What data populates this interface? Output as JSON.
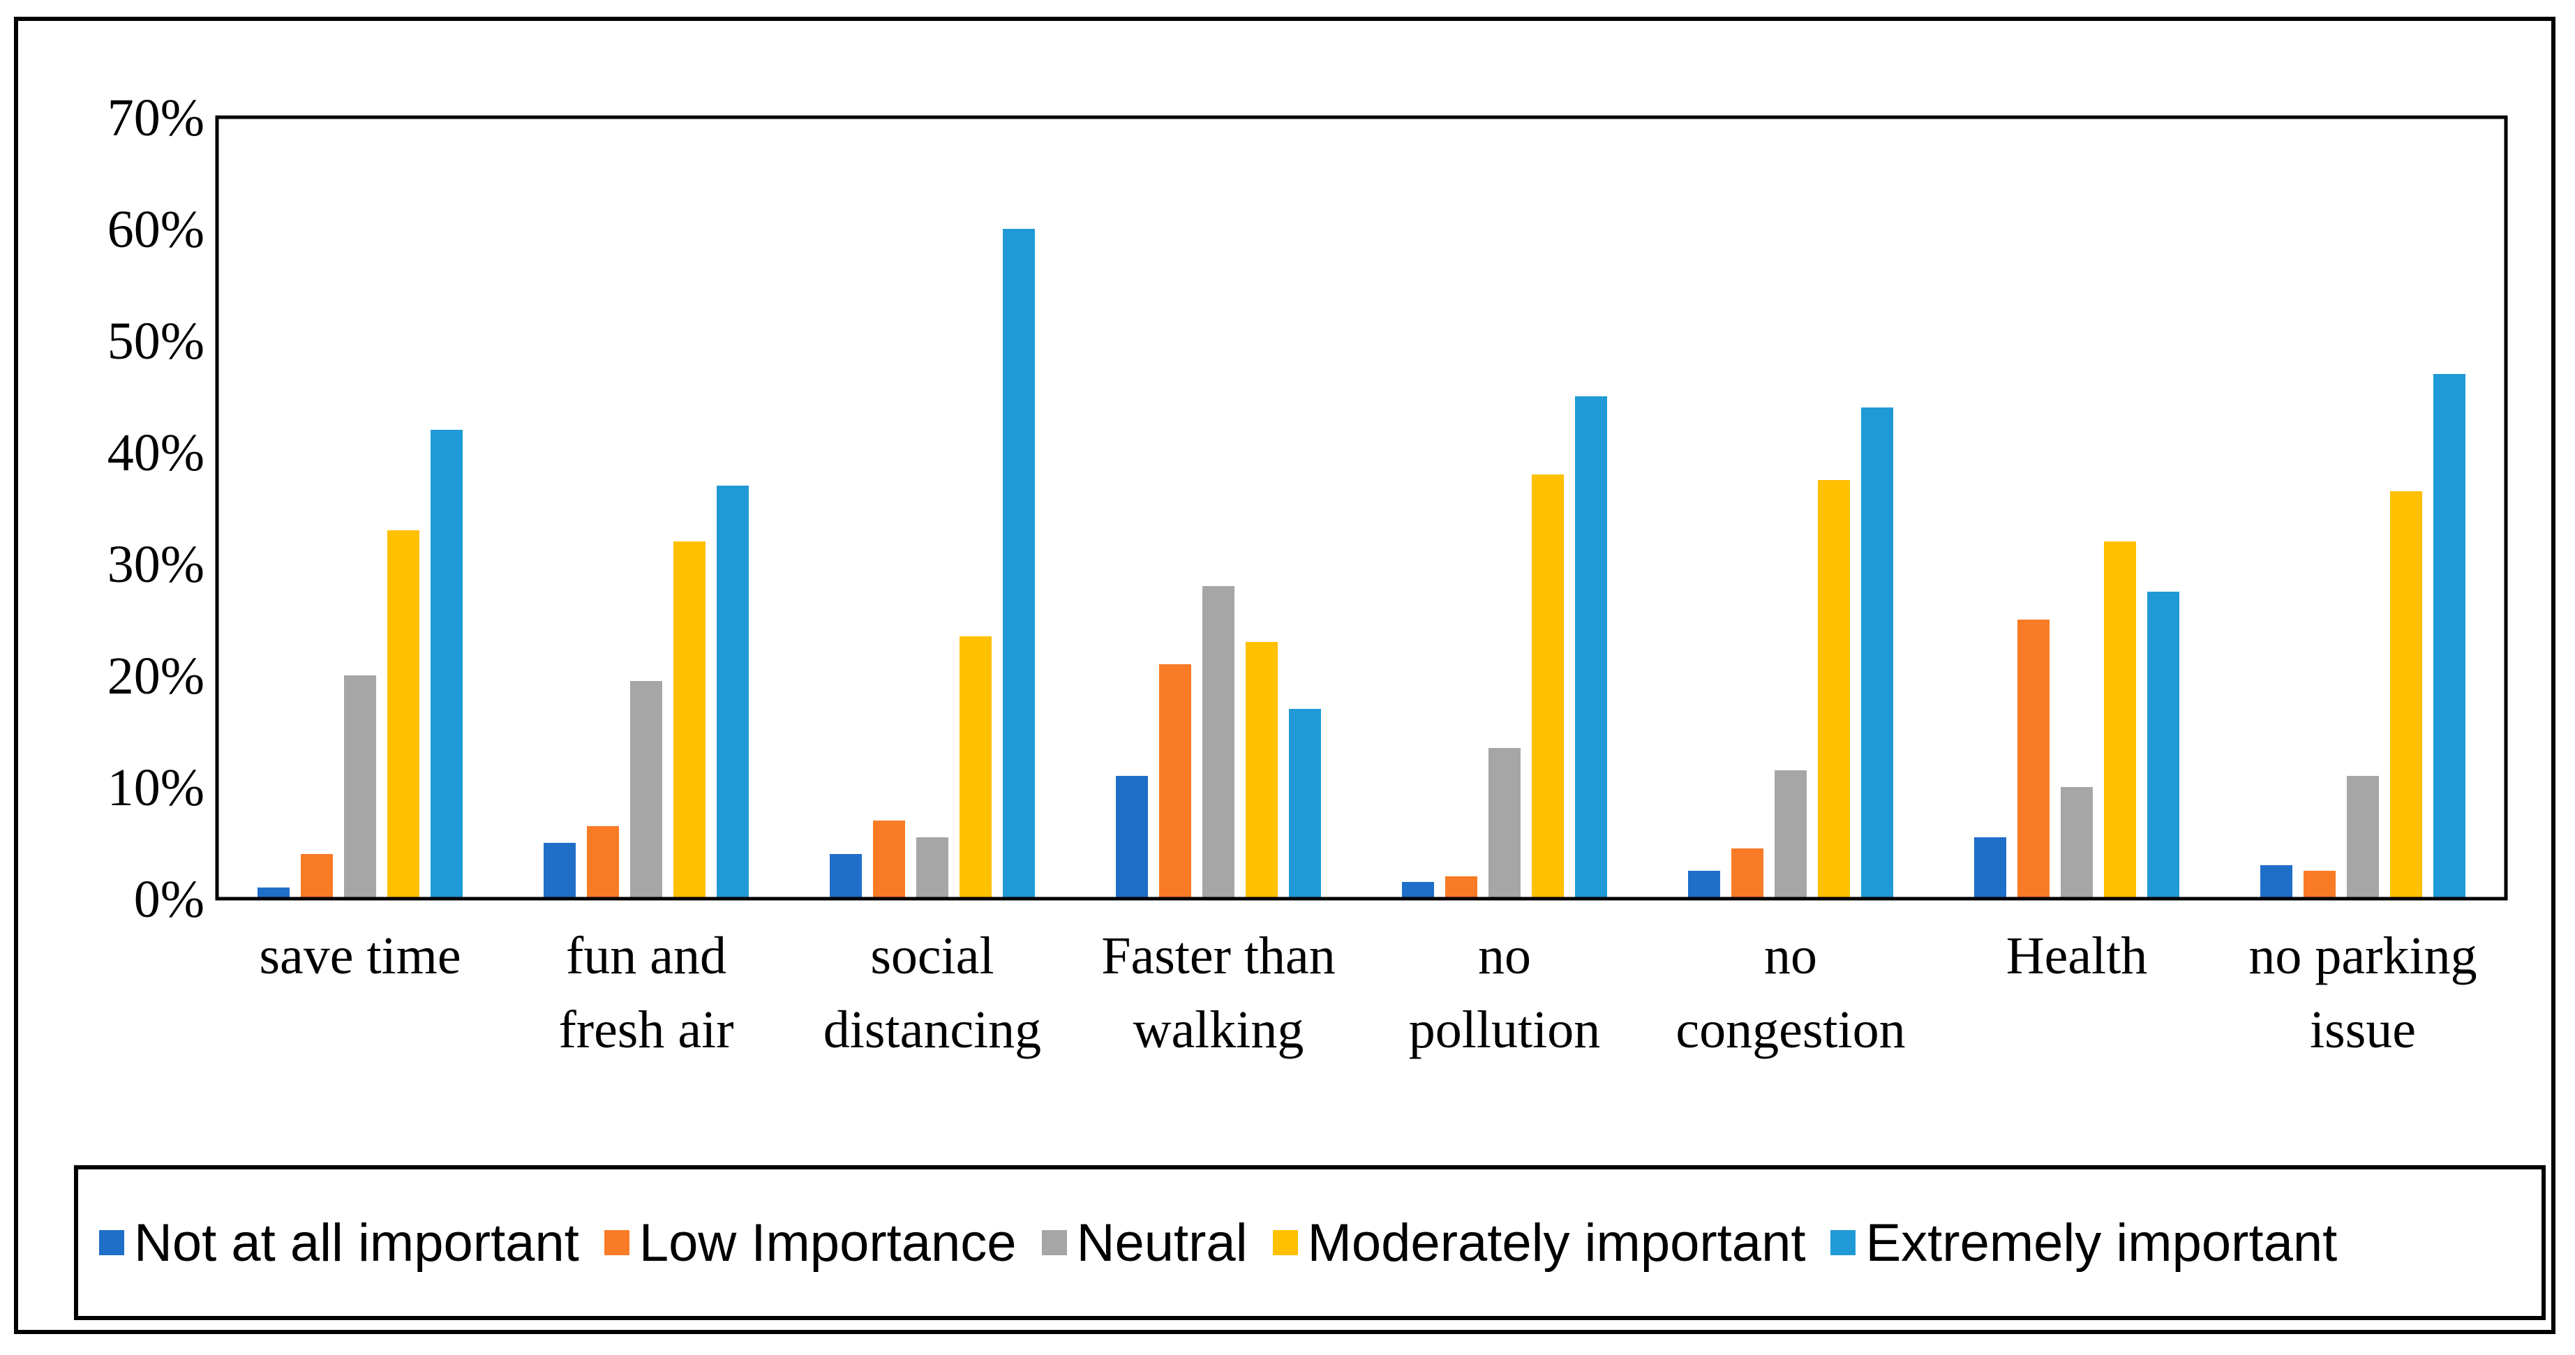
{
  "chart_data": {
    "type": "bar",
    "title": "",
    "xlabel": "",
    "ylabel": "",
    "ylim": [
      0,
      70
    ],
    "yticks": [
      "0%",
      "10%",
      "20%",
      "30%",
      "40%",
      "50%",
      "60%",
      "70%"
    ],
    "categories": [
      [
        "save time"
      ],
      [
        "fun and",
        "fresh air"
      ],
      [
        "social",
        "distancing"
      ],
      [
        "Faster than",
        "walking"
      ],
      [
        "no",
        "pollution"
      ],
      [
        "no",
        "congestion"
      ],
      [
        "Health"
      ],
      [
        "no parking",
        "issue"
      ]
    ],
    "series": [
      {
        "name": "Not at all important",
        "color": "#1f6fc9",
        "values": [
          1,
          5,
          4,
          11,
          1.5,
          2.5,
          5.5,
          3
        ]
      },
      {
        "name": "Low Importance",
        "color": "#f97b26",
        "values": [
          4,
          6.5,
          7,
          21,
          2,
          4.5,
          25,
          2.5
        ]
      },
      {
        "name": "Neutral",
        "color": "#a6a6a6",
        "values": [
          20,
          19.5,
          5.5,
          28,
          13.5,
          11.5,
          10,
          11
        ]
      },
      {
        "name": "Moderately important",
        "color": "#ffc000",
        "values": [
          33,
          32,
          23.5,
          23,
          38,
          37.5,
          32,
          36.5
        ]
      },
      {
        "name": "Extremely important",
        "color": "#1f9ad6",
        "values": [
          42,
          37,
          60,
          17,
          45,
          44,
          27.5,
          47
        ]
      }
    ],
    "legend_position": "bottom"
  }
}
